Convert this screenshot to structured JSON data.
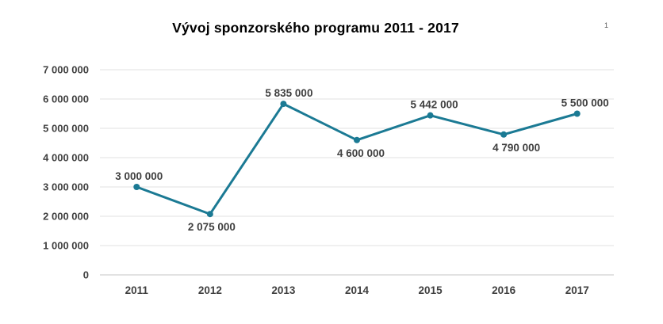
{
  "slide": {
    "page_number": "1"
  },
  "chart_data": {
    "type": "line",
    "title": "Vývoj sponzorského programu 2011 - 2017",
    "xlabel": "",
    "ylabel": "",
    "categories": [
      "2011",
      "2012",
      "2013",
      "2014",
      "2015",
      "2016",
      "2017"
    ],
    "series": [
      {
        "name": "sponzorsky-program",
        "values": [
          3000000,
          2075000,
          5835000,
          4600000,
          5442000,
          4790000,
          5500000
        ],
        "labels": [
          "3 000 000",
          "2 075 000",
          "5 835 000",
          "4 600 000",
          "5 442 000",
          "4 790 000",
          "5 500 000"
        ],
        "label_positions": [
          "above",
          "below",
          "above",
          "below",
          "above",
          "below",
          "above"
        ]
      }
    ],
    "ylim": [
      0,
      7000000
    ],
    "ytick_interval": 1000000,
    "yticks": [
      {
        "value": 0,
        "label": "0"
      },
      {
        "value": 1000000,
        "label": "1 000 000"
      },
      {
        "value": 2000000,
        "label": "2 000 000"
      },
      {
        "value": 3000000,
        "label": "3 000 000"
      },
      {
        "value": 4000000,
        "label": "4 000 000"
      },
      {
        "value": 5000000,
        "label": "5 000 000"
      },
      {
        "value": 6000000,
        "label": "6 000 000"
      },
      {
        "value": 7000000,
        "label": "7 000 000"
      }
    ],
    "grid": true,
    "legend_position": "none",
    "colors": {
      "line": "#1b7a94",
      "marker": "#1b7a94",
      "gridline": "#e0e0e0",
      "axis_line": "#c6c6c6",
      "tick_label": "#404040",
      "data_label": "#3f3f3f",
      "title": "#000000"
    }
  }
}
